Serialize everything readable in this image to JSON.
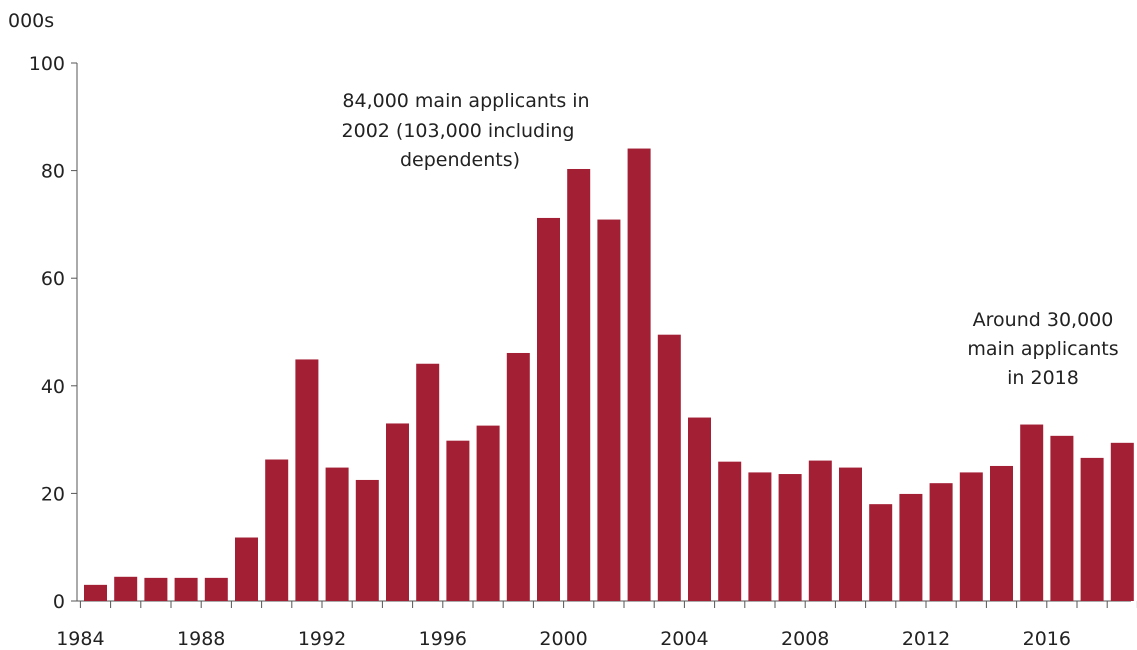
{
  "chart_data": {
    "type": "bar",
    "ylabel": "000s",
    "ylim": [
      0,
      100
    ],
    "yticks": [
      "0",
      "20",
      "40",
      "60",
      "80",
      "100"
    ],
    "xtick_labels": [
      "1984",
      "1988",
      "1992",
      "1996",
      "2000",
      "2004",
      "2008",
      "2012",
      "2016"
    ],
    "categories": [
      "1984",
      "1985",
      "1986",
      "1987",
      "1988",
      "1989",
      "1990",
      "1991",
      "1992",
      "1993",
      "1994",
      "1995",
      "1996",
      "1997",
      "1998",
      "1999",
      "2000",
      "2001",
      "2002",
      "2003",
      "2004",
      "2005",
      "2006",
      "2007",
      "2008",
      "2009",
      "2010",
      "2011",
      "2012",
      "2013",
      "2014",
      "2015",
      "2016",
      "2017",
      "2018"
    ],
    "values": [
      3.0,
      4.5,
      4.3,
      4.3,
      4.3,
      11.8,
      26.3,
      44.9,
      24.8,
      22.5,
      33.0,
      44.1,
      29.8,
      32.6,
      46.1,
      71.2,
      80.3,
      70.9,
      84.1,
      49.5,
      34.1,
      25.9,
      23.9,
      23.6,
      26.1,
      24.8,
      18.0,
      19.9,
      21.9,
      23.9,
      25.1,
      32.8,
      30.7,
      26.6,
      29.4
    ],
    "bar_color": "#a31f34",
    "grid": false,
    "annotations": [
      {
        "lines": [
          "84,000 main applicants in",
          "2002 (103,000 including",
          "dependents)"
        ]
      },
      {
        "lines": [
          "Around 30,000",
          "main applicants",
          "in 2018"
        ]
      }
    ]
  }
}
